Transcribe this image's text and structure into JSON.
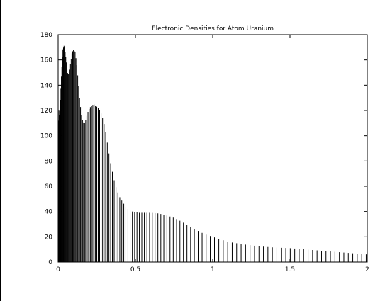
{
  "chart_data": {
    "type": "bar",
    "title": "Electronic Densities for Atom Uranium",
    "xlabel": "",
    "ylabel": "",
    "xlim": [
      0,
      2
    ],
    "ylim": [
      0,
      180
    ],
    "xticks": [
      0,
      0.5,
      1,
      1.5,
      2
    ],
    "xtick_labels": [
      "0",
      "0.5",
      "1",
      "1.5",
      "2"
    ],
    "yticks": [
      0,
      20,
      40,
      60,
      80,
      100,
      120,
      140,
      160,
      180
    ],
    "ytick_labels": [
      "0",
      "20",
      "40",
      "60",
      "80",
      "100",
      "120",
      "140",
      "160",
      "180"
    ],
    "grid": false,
    "legend": "none",
    "bar_color": "#000000",
    "x": [
      0.0,
      0.005,
      0.01,
      0.02,
      0.03,
      0.04,
      0.05,
      0.06,
      0.07,
      0.08,
      0.09,
      0.1,
      0.11,
      0.12,
      0.13,
      0.14,
      0.15,
      0.16,
      0.17,
      0.18,
      0.19,
      0.2,
      0.21,
      0.22,
      0.23,
      0.24,
      0.25,
      0.26,
      0.27,
      0.28,
      0.29,
      0.3,
      0.31,
      0.32,
      0.33,
      0.34,
      0.35,
      0.36,
      0.37,
      0.38,
      0.39,
      0.4,
      0.42,
      0.44,
      0.46,
      0.48,
      0.5,
      0.52,
      0.55,
      0.6,
      0.65,
      0.7,
      0.75,
      0.8,
      0.85,
      0.9,
      0.95,
      1.0,
      1.05,
      1.1,
      1.2,
      1.3,
      1.4,
      1.5,
      1.6,
      1.7,
      1.8,
      1.9,
      2.0
    ],
    "values": [
      102,
      120,
      115,
      145,
      168,
      172,
      162,
      150,
      148,
      157,
      166,
      168,
      166,
      157,
      143,
      128,
      117,
      111,
      110,
      113,
      118,
      121,
      123,
      124,
      125,
      124,
      123,
      122,
      120,
      117,
      113,
      108,
      101,
      93,
      85,
      78,
      72,
      66,
      61,
      57,
      54,
      51,
      47,
      43.5,
      41,
      40,
      39.5,
      39,
      39,
      39,
      38.5,
      37,
      35,
      32,
      28,
      25,
      22,
      20,
      18,
      16,
      14,
      12.5,
      11.5,
      11,
      10,
      9,
      8,
      7,
      6
    ]
  }
}
